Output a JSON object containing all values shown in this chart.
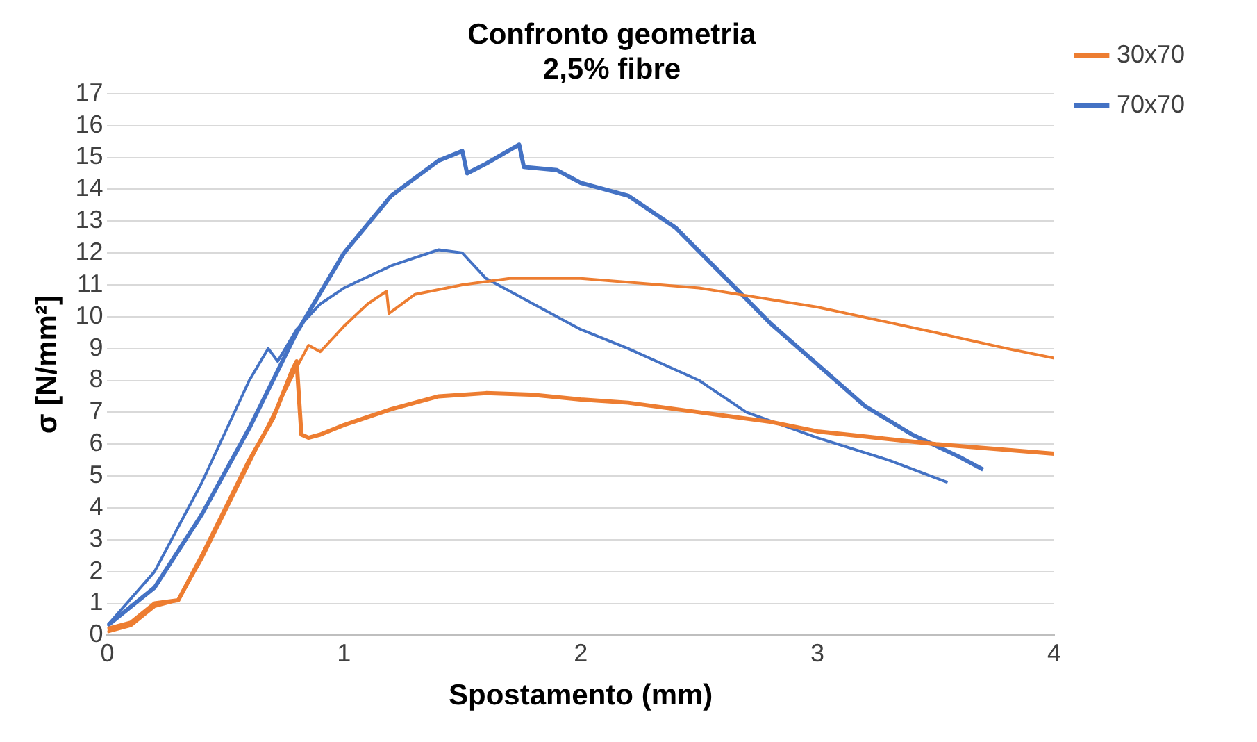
{
  "chart_data": {
    "type": "line",
    "title": "Confronto geometria",
    "subtitle": "2,5% fibre",
    "xlabel": "Spostamento (mm)",
    "ylabel": "σ [N/mm²]",
    "xlim": [
      0,
      4
    ],
    "xticks": [
      0,
      1,
      2,
      3,
      4
    ],
    "ylim": [
      0,
      17
    ],
    "yticks": [
      0,
      1,
      2,
      3,
      4,
      5,
      6,
      7,
      8,
      9,
      10,
      11,
      12,
      13,
      14,
      15,
      16,
      17
    ],
    "grid": "y",
    "legend": "top right",
    "marker": "none",
    "line_style": "solid",
    "series": [
      {
        "name": "30x70",
        "color": "#ed7d31",
        "x": [
          0,
          0.1,
          0.2,
          0.3,
          0.4,
          0.5,
          0.6,
          0.7,
          0.78,
          0.8,
          0.82,
          0.85,
          0.9,
          1.0,
          1.2,
          1.4,
          1.6,
          1.8,
          2,
          2.2,
          2.5,
          2.8,
          3,
          3.5,
          4
        ],
        "values": [
          0.2,
          0.4,
          1.0,
          1.1,
          2.5,
          4,
          5.5,
          6.8,
          8.3,
          8.6,
          6.3,
          6.2,
          6.3,
          6.6,
          7.1,
          7.5,
          7.6,
          7.55,
          7.4,
          7.3,
          7.0,
          6.7,
          6.4,
          6.0,
          5.7
        ]
      },
      {
        "color": "#ed7d31",
        "x": [
          0,
          0.1,
          0.2,
          0.3,
          0.4,
          0.5,
          0.6,
          0.7,
          0.8,
          0.85,
          0.9,
          1.0,
          1.1,
          1.18,
          1.19,
          1.3,
          1.5,
          1.7,
          2,
          2.5,
          3,
          3.5,
          3.8,
          4
        ],
        "values": [
          0.1,
          0.3,
          0.9,
          1.1,
          2.4,
          3.9,
          5.4,
          6.9,
          8.4,
          9.1,
          8.9,
          9.7,
          10.4,
          10.8,
          10.1,
          10.7,
          11.0,
          11.2,
          11.2,
          10.9,
          10.3,
          9.5,
          9.0,
          8.7
        ]
      },
      {
        "name": "70x70",
        "color": "#4472c4",
        "x": [
          0,
          0.2,
          0.4,
          0.6,
          0.8,
          1.0,
          1.2,
          1.4,
          1.5,
          1.52,
          1.6,
          1.74,
          1.76,
          1.9,
          2.0,
          2.2,
          2.4,
          2.6,
          2.8,
          3.0,
          3.2,
          3.4,
          3.6,
          3.7
        ],
        "values": [
          0.3,
          1.5,
          3.8,
          6.5,
          9.5,
          12,
          13.8,
          14.9,
          15.2,
          14.5,
          14.8,
          15.4,
          14.7,
          14.6,
          14.2,
          13.8,
          12.8,
          11.3,
          9.8,
          8.5,
          7.2,
          6.3,
          5.6,
          5.2
        ]
      },
      {
        "color": "#4472c4",
        "x": [
          0,
          0.2,
          0.4,
          0.6,
          0.68,
          0.72,
          0.8,
          0.9,
          1.0,
          1.2,
          1.4,
          1.5,
          1.6,
          1.8,
          2.0,
          2.2,
          2.5,
          2.7,
          3.0,
          3.3,
          3.55
        ],
        "values": [
          0.3,
          2,
          4.8,
          8.0,
          9.0,
          8.6,
          9.6,
          10.4,
          10.9,
          11.6,
          12.1,
          12,
          11.2,
          10.4,
          9.6,
          9.0,
          8.0,
          7.0,
          6.2,
          5.5,
          4.8
        ]
      }
    ]
  }
}
